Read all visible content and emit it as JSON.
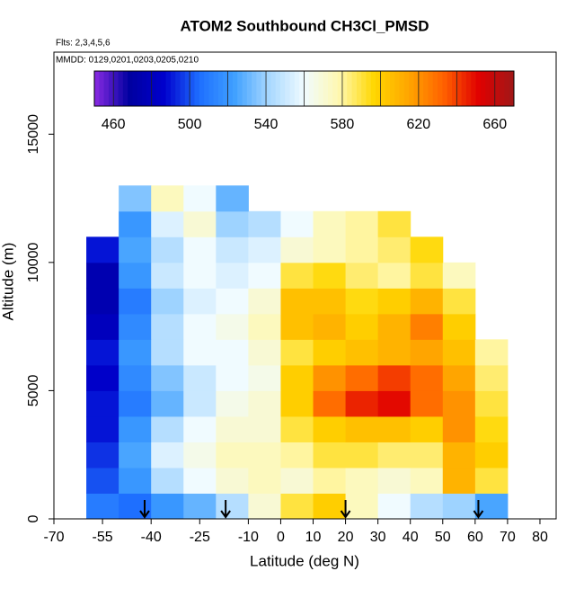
{
  "chart_data": {
    "type": "heatmap",
    "title": "ATOM2 Southbound CH3Cl_PMSD",
    "annotations": [
      "Flts: 2,3,4,5,6",
      "MMDD: 0129,0201,0203,0205,0210"
    ],
    "xlabel": "Latitude (deg N)",
    "ylabel": "Altitude (m)",
    "xbins": [
      -60,
      -50,
      -40,
      -30,
      -20,
      -10,
      0,
      10,
      20,
      30,
      40,
      50,
      60,
      70
    ],
    "ybins": [
      0,
      1000,
      2000,
      3000,
      4000,
      5000,
      6000,
      7000,
      8000,
      9000,
      10000,
      11000,
      12000,
      13000
    ],
    "z": [
      [
        510,
        505,
        520,
        530,
        545,
        570,
        590,
        600,
        575,
        560,
        545,
        540,
        525
      ],
      [
        500,
        520,
        545,
        560,
        570,
        575,
        570,
        580,
        575,
        570,
        575,
        610,
        590
      ],
      [
        495,
        525,
        555,
        565,
        575,
        575,
        580,
        590,
        590,
        585,
        585,
        610,
        600
      ],
      [
        490,
        520,
        545,
        560,
        570,
        570,
        590,
        600,
        605,
        605,
        600,
        620,
        595
      ],
      [
        490,
        510,
        530,
        550,
        565,
        570,
        600,
        630,
        645,
        650,
        630,
        620,
        590
      ],
      [
        485,
        515,
        535,
        550,
        560,
        565,
        600,
        620,
        630,
        640,
        630,
        615,
        585
      ],
      [
        490,
        520,
        545,
        560,
        560,
        570,
        590,
        600,
        605,
        610,
        615,
        605,
        580
      ],
      [
        480,
        515,
        545,
        560,
        565,
        575,
        605,
        610,
        600,
        610,
        625,
        600,
        null
      ],
      [
        475,
        510,
        540,
        555,
        560,
        570,
        605,
        605,
        595,
        600,
        610,
        590,
        null
      ],
      [
        475,
        520,
        550,
        560,
        555,
        560,
        590,
        595,
        585,
        580,
        590,
        575,
        null
      ],
      [
        490,
        525,
        545,
        560,
        550,
        555,
        570,
        575,
        580,
        585,
        595,
        null,
        null
      ],
      [
        null,
        520,
        555,
        570,
        540,
        545,
        560,
        575,
        580,
        590,
        null,
        null,
        null
      ],
      [
        null,
        535,
        575,
        560,
        530,
        null,
        null,
        null,
        null,
        null,
        null,
        null,
        null
      ]
    ],
    "xlim": [
      -70,
      85
    ],
    "ylim": [
      0,
      18200
    ],
    "xticks": [
      -70,
      -55,
      -40,
      -25,
      -10,
      0,
      10,
      20,
      30,
      40,
      50,
      60,
      70,
      80
    ],
    "yticks": [
      0,
      5000,
      10000,
      15000
    ],
    "colorbar": {
      "lim": [
        450,
        670
      ],
      "ticks": [
        460,
        500,
        540,
        580,
        620,
        660
      ],
      "colors": [
        "#8a2be2",
        "#0000a0",
        "#0000cd",
        "#1e6fff",
        "#3fa0ff",
        "#a8d8ff",
        "#f0fbff",
        "#fff8b0",
        "#ffd700",
        "#ffa500",
        "#ff6000",
        "#e00000",
        "#a01818"
      ]
    },
    "arrows_x": [
      -42,
      -17,
      20,
      61
    ]
  }
}
